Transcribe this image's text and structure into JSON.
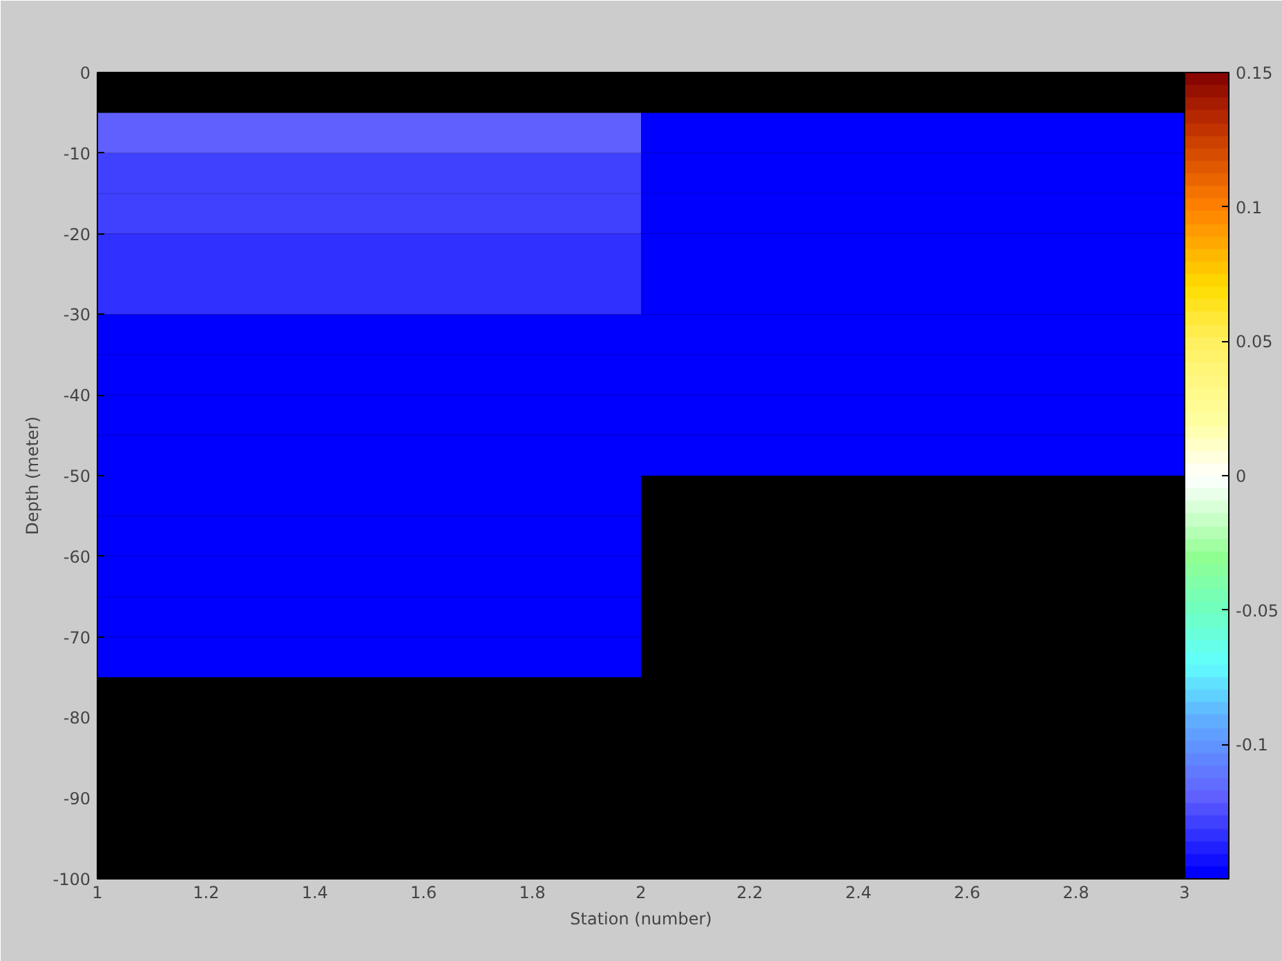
{
  "chart_data": {
    "type": "heatmap",
    "xlabel": "Station (number)",
    "ylabel": "Depth (meter)",
    "x": [
      1.5,
      2.5
    ],
    "y": [
      -7.5,
      -12.5,
      -17.5,
      -22.5,
      -27.5,
      -32.5,
      -37.5,
      -42.5,
      -47.5,
      -52.5,
      -57.5,
      -62.5,
      -67.5,
      -72.5
    ],
    "cells": [
      [
        -0.12,
        -0.15
      ],
      [
        -0.129,
        -0.15
      ],
      [
        -0.129,
        -0.15
      ],
      [
        -0.134,
        -0.15
      ],
      [
        -0.134,
        -0.15
      ],
      [
        -0.15,
        -0.15
      ],
      [
        -0.15,
        -0.15
      ],
      [
        -0.15,
        -0.15
      ],
      [
        -0.15,
        -0.15
      ],
      [
        -0.15,
        null
      ],
      [
        -0.15,
        null
      ],
      [
        -0.15,
        null
      ],
      [
        -0.15,
        null
      ],
      [
        -0.15,
        null
      ]
    ],
    "clim": [
      -0.15,
      0.15
    ],
    "cticks": [
      -0.1,
      -0.05,
      0,
      0.05,
      0.1,
      0.15
    ],
    "xlim": [
      1,
      3
    ],
    "xticks": [
      1,
      1.2,
      1.4,
      1.6,
      1.8,
      2,
      2.2,
      2.4,
      2.6,
      2.8,
      3
    ],
    "ylim": [
      -100,
      0
    ],
    "yticks": [
      -100,
      -90,
      -80,
      -70,
      -60,
      -50,
      -40,
      -30,
      -20,
      -10,
      0
    ],
    "grid": false
  }
}
